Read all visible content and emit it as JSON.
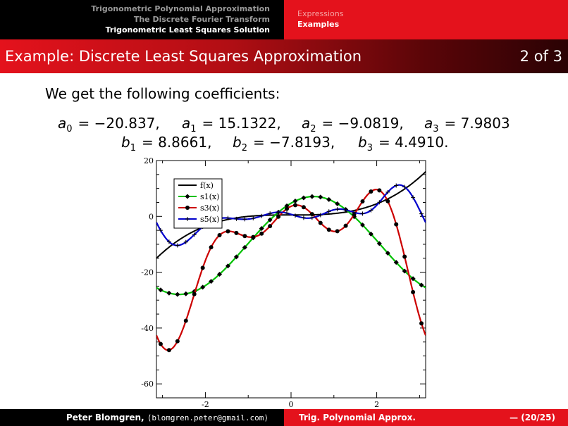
{
  "header": {
    "sections": [
      "Trigonometric Polynomial Approximation",
      "The Discrete Fourier Transform",
      "Trigonometric Least Squares Solution"
    ],
    "active_section": 2,
    "subsections": [
      "Expressions",
      "Examples"
    ],
    "active_subsection": 1
  },
  "title": {
    "text": "Example: Discrete Least Squares Approximation",
    "counter": "2 of 3"
  },
  "body": {
    "intro": "We get the following coefficients:",
    "coefficients_row1": [
      {
        "sym": "a",
        "sub": "0",
        "val": "= −20.837,"
      },
      {
        "sym": "a",
        "sub": "1",
        "val": "= 15.1322,"
      },
      {
        "sym": "a",
        "sub": "2",
        "val": "= −9.0819,"
      },
      {
        "sym": "a",
        "sub": "3",
        "val": "= 7.9803"
      }
    ],
    "coefficients_row2": [
      {
        "sym": "b",
        "sub": "1",
        "val": "= 8.8661,"
      },
      {
        "sym": "b",
        "sub": "2",
        "val": "= −7.8193,"
      },
      {
        "sym": "b",
        "sub": "3",
        "val": "= 4.4910."
      }
    ]
  },
  "chart_data": {
    "type": "line",
    "xlim": [
      -3.14159,
      3.14159
    ],
    "ylim": [
      -65,
      20
    ],
    "xticks": [
      -2,
      0,
      2
    ],
    "xtick_labels": [
      "-2",
      "0",
      "2"
    ],
    "yticks": [
      20,
      0,
      -20,
      -40,
      -60
    ],
    "ytick_labels": [
      "20",
      "0",
      "-20",
      "-40",
      "-60"
    ],
    "grid": false,
    "legend_position": "top-left",
    "coefficients": {
      "a": [
        -20.837,
        15.1322,
        -9.0819,
        7.9803
      ],
      "b": [
        8.8661,
        -7.8193,
        4.491
      ]
    },
    "series": [
      {
        "name": "f(x)",
        "color": "#000000",
        "marker": "none",
        "expression": "x^3/2 + 0.5 (approx.)"
      },
      {
        "name": "s1(x)",
        "color": "#00c000",
        "marker": "diamond"
      },
      {
        "name": "s3(x)",
        "color": "#cc0000",
        "marker": "circle"
      },
      {
        "name": "s5(x)",
        "color": "#0000cc",
        "marker": "plus"
      }
    ],
    "title": "",
    "xlabel": "",
    "ylabel": ""
  },
  "footer": {
    "author": "Peter Blomgren,",
    "email": "⟨blomgren.peter@gmail.com⟩",
    "short_title": "Trig. Polynomial Approx.",
    "page": "— (20/25)"
  }
}
